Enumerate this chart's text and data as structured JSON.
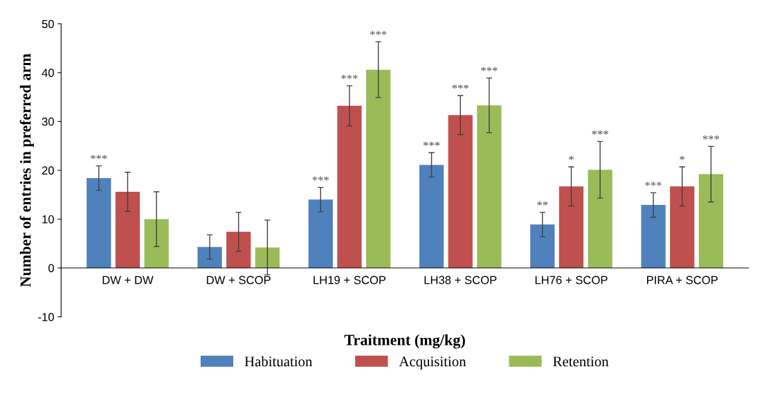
{
  "chart_data": {
    "type": "bar",
    "xlabel": "Traitment (mg/kg)",
    "ylabel": "Number of entries in preferred arm",
    "categories": [
      "DW + DW",
      "DW + SCOP",
      "LH19 + SCOP",
      "LH38 + SCOP",
      "LH76 + SCOP",
      "PIRA + SCOP"
    ],
    "series": [
      {
        "name": "Habituation",
        "color": "#4f81bd",
        "values": [
          18.4,
          4.3,
          14.0,
          21.1,
          8.9,
          12.9
        ],
        "errors": [
          2.5,
          2.5,
          2.5,
          2.5,
          2.5,
          2.5
        ],
        "value_labels": [
          "***",
          null,
          "***",
          "***",
          "**",
          "***"
        ]
      },
      {
        "name": "Acquisition",
        "color": "#c0504d",
        "values": [
          15.6,
          7.4,
          33.2,
          31.3,
          16.7,
          16.7
        ],
        "errors": [
          4.0,
          4.0,
          4.1,
          4.0,
          4.0,
          4.0
        ],
        "value_labels": [
          null,
          null,
          "***",
          "***",
          "*",
          "*"
        ]
      },
      {
        "name": "Retention",
        "color": "#9bbb59",
        "values": [
          10.0,
          4.2,
          40.6,
          33.3,
          20.1,
          19.2
        ],
        "errors": [
          5.6,
          5.6,
          5.7,
          5.6,
          5.8,
          5.7
        ],
        "value_labels": [
          null,
          null,
          "***",
          "***",
          "***",
          "***"
        ]
      }
    ],
    "ylim": [
      -10,
      50
    ],
    "yticks": [
      -10,
      0,
      10,
      20,
      30,
      40,
      50
    ],
    "grid": false,
    "legend": "bottom"
  }
}
